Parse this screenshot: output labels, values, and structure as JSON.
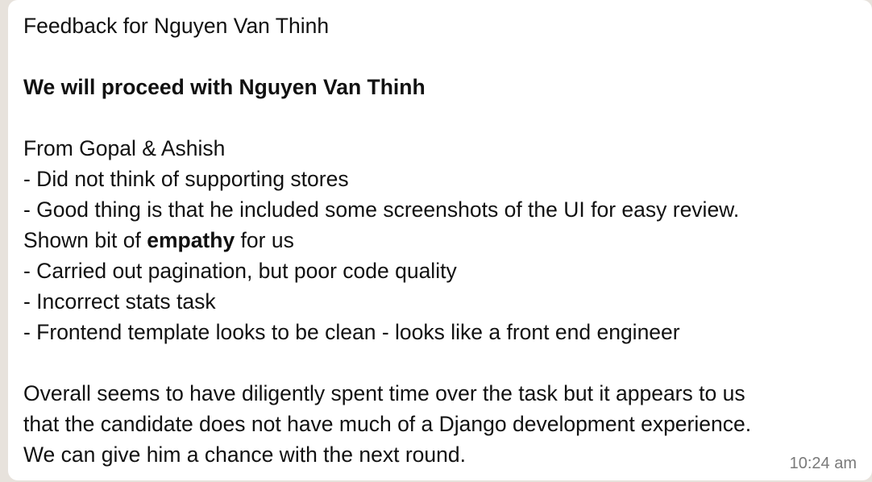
{
  "message": {
    "title": "Feedback for Nguyen Van Thinh",
    "decision": "We will proceed with Nguyen Van Thinh",
    "from": "From Gopal & Ashish",
    "point1": "- Did not think of supporting stores",
    "point2": "- Good thing is that he included some screenshots of the UI for easy review.",
    "point2_cont_before": "Shown bit of ",
    "point2_cont_bold": "empathy",
    "point2_cont_after": " for us",
    "point3": "- Carried out pagination, but poor code quality",
    "point4": "- Incorrect stats task",
    "point5": "- Frontend template looks to be clean - looks like a front end engineer",
    "overall1": "Overall seems to have diligently spent time over the task but it appears to us",
    "overall2": "that the candidate does not have much of a Django development experience.",
    "overall3": "We can give him a chance with the next round.",
    "timestamp": "10:24 am"
  }
}
